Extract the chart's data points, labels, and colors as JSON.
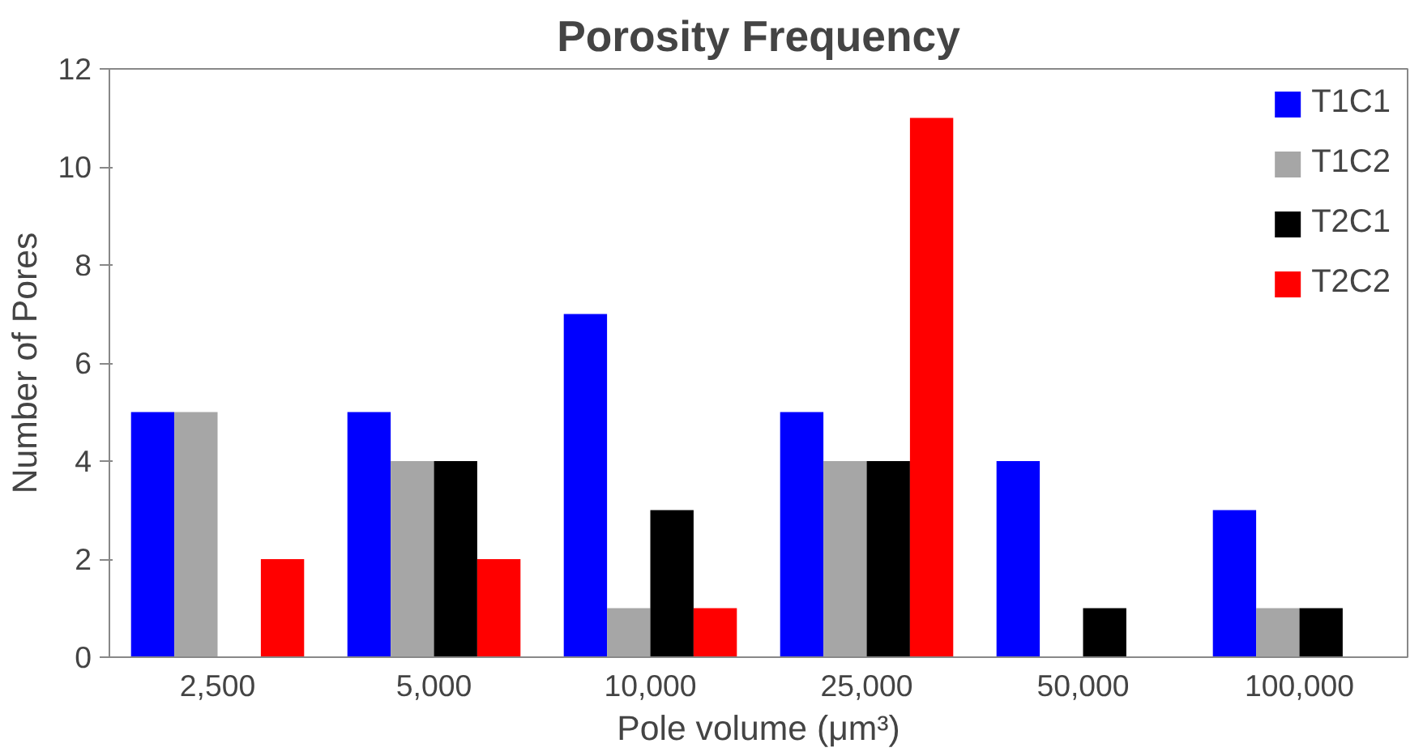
{
  "chart_data": {
    "type": "bar",
    "title": "Porosity Frequency",
    "xlabel": "Pole volume (μm³)",
    "ylabel": "Number of Pores",
    "categories": [
      "2,500",
      "5,000",
      "10,000",
      "25,000",
      "50,000",
      "100,000"
    ],
    "series": [
      {
        "name": "T1C1",
        "color": "#0000ff",
        "values": [
          5,
          5,
          7,
          5,
          4,
          3
        ]
      },
      {
        "name": "T1C2",
        "color": "#a6a6a6",
        "values": [
          5,
          4,
          1,
          4,
          0,
          1
        ]
      },
      {
        "name": "T2C1",
        "color": "#000000",
        "values": [
          0,
          4,
          3,
          4,
          1,
          1
        ]
      },
      {
        "name": "T2C2",
        "color": "#ff0000",
        "values": [
          2,
          2,
          1,
          11,
          0,
          0
        ]
      }
    ],
    "ylim": [
      0,
      12
    ],
    "yticks": [
      0,
      2,
      4,
      6,
      8,
      10,
      12
    ],
    "grid": false,
    "legend": "top right"
  }
}
